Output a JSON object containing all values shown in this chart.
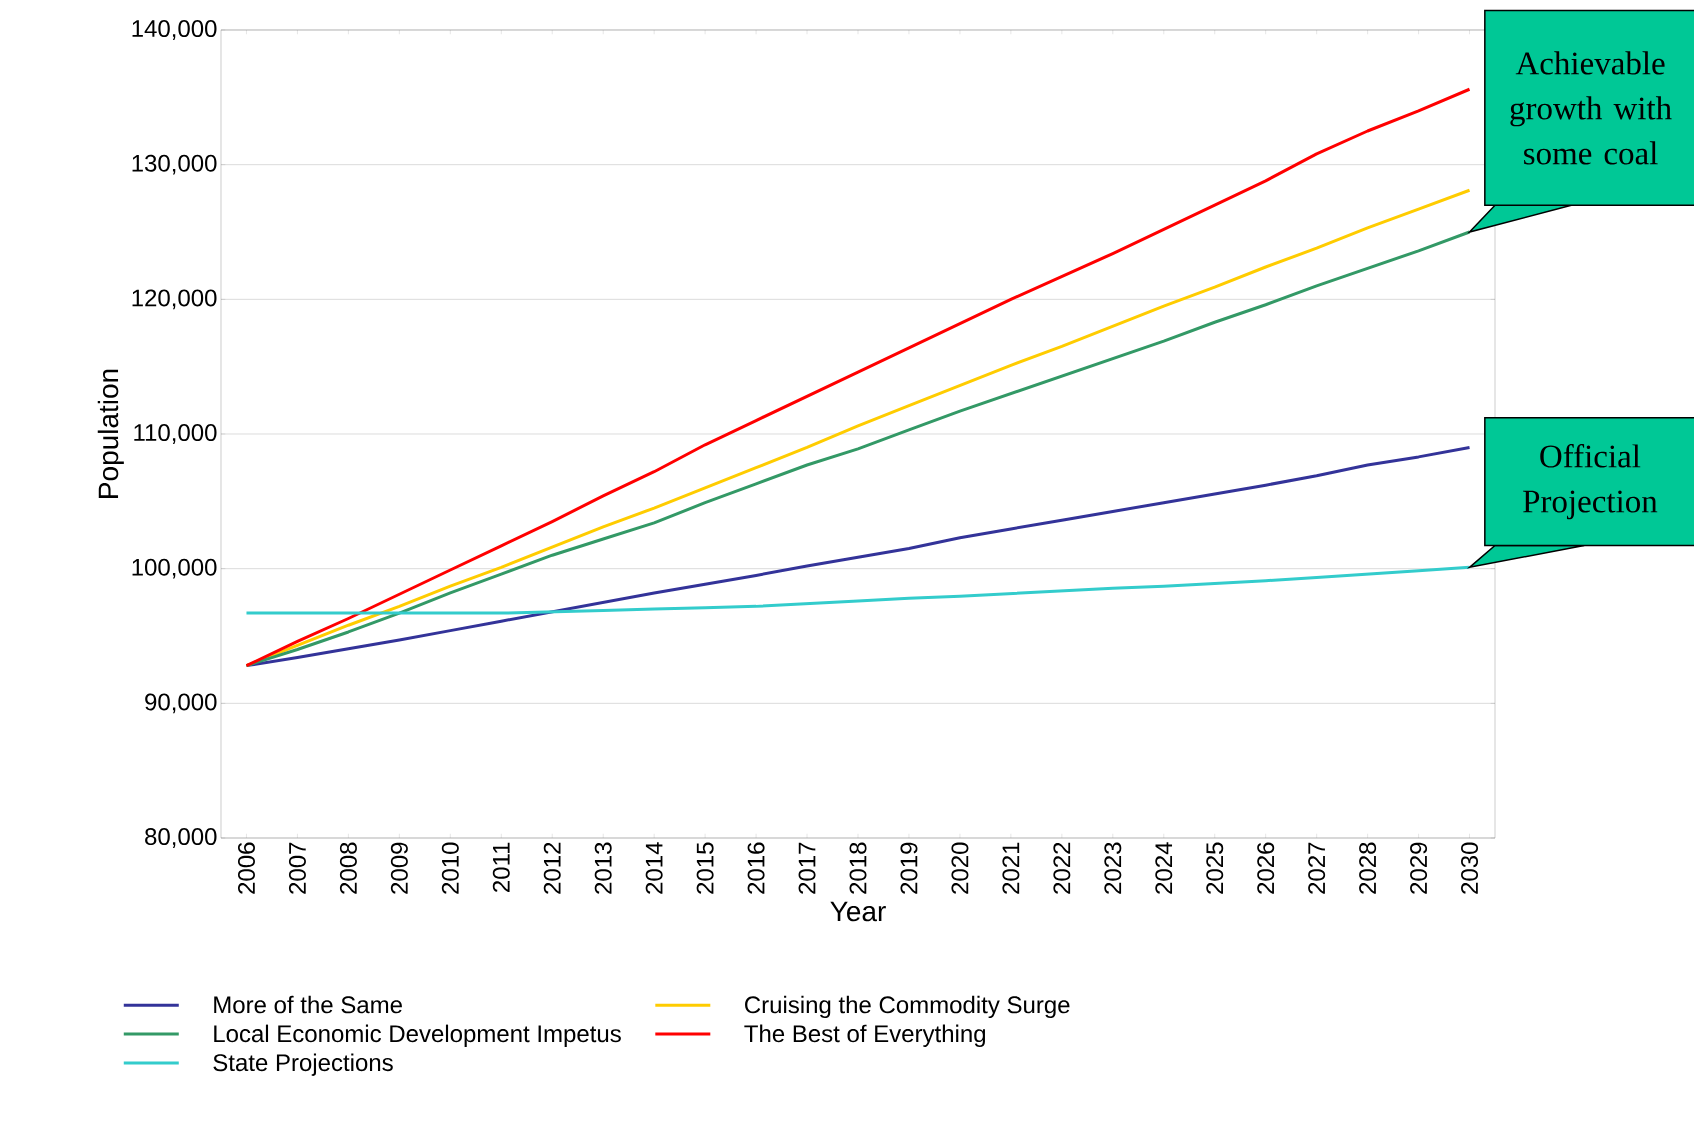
{
  "chart_data": {
    "type": "line",
    "xlabel": "Year",
    "ylabel": "Population",
    "categories": [
      "2006",
      "2007",
      "2008",
      "2009",
      "2010",
      "2011",
      "2012",
      "2013",
      "2014",
      "2015",
      "2016",
      "2017",
      "2018",
      "2019",
      "2020",
      "2021",
      "2022",
      "2023",
      "2024",
      "2025",
      "2026",
      "2027",
      "2028",
      "2029",
      "2030"
    ],
    "series": [
      {
        "name": "More of the Same",
        "color": "#333399",
        "values": [
          92800,
          93400,
          94050,
          94700,
          95400,
          96100,
          96800,
          97500,
          98200,
          98850,
          99500,
          100200,
          100850,
          101500,
          102300,
          102950,
          103600,
          104250,
          104900,
          105550,
          106200,
          106900,
          107700,
          108300,
          109000
        ]
      },
      {
        "name": "Cruising the Commodity Surge",
        "color": "#ffcc00",
        "values": [
          92800,
          94300,
          95800,
          97200,
          98700,
          100100,
          101600,
          103100,
          104500,
          106000,
          107500,
          109000,
          110600,
          112100,
          113600,
          115100,
          116500,
          118000,
          119500,
          120900,
          122400,
          123800,
          125300,
          126700,
          128100
        ]
      },
      {
        "name": "Local Economic Development Impetus",
        "color": "#339966",
        "values": [
          92800,
          94000,
          95300,
          96700,
          98200,
          99600,
          101000,
          102200,
          103400,
          104900,
          106300,
          107700,
          108900,
          110300,
          111700,
          113000,
          114300,
          115600,
          116900,
          118300,
          119600,
          121000,
          122300,
          123600,
          125000
        ]
      },
      {
        "name": "The Best of Everything",
        "color": "#ff0000",
        "values": [
          92800,
          94600,
          96300,
          98100,
          99900,
          101700,
          103500,
          105400,
          107200,
          109200,
          111000,
          112800,
          114600,
          116400,
          118200,
          120000,
          121700,
          123400,
          125200,
          127000,
          128800,
          130800,
          132500,
          134000,
          135600
        ]
      },
      {
        "name": "State Projections",
        "color": "#33cccc",
        "values": [
          96700,
          96700,
          96700,
          96700,
          96700,
          96700,
          96800,
          96900,
          97000,
          97100,
          97200,
          97400,
          97600,
          97800,
          97950,
          98150,
          98350,
          98550,
          98700,
          98900,
          99100,
          99350,
          99600,
          99850,
          100100
        ]
      }
    ],
    "ylim": [
      80000,
      140000
    ],
    "yticks": [
      {
        "value": 80000,
        "label": "80,000"
      },
      {
        "value": 90000,
        "label": "90,000"
      },
      {
        "value": 100000,
        "label": "100,000"
      },
      {
        "value": 110000,
        "label": "110,000"
      },
      {
        "value": 120000,
        "label": "120,000"
      },
      {
        "value": 130000,
        "label": "130,000"
      },
      {
        "value": 140000,
        "label": "140,000"
      }
    ],
    "grid": "y",
    "legend": "bottom",
    "marker": "none",
    "line_style": "solid",
    "annotations": [
      {
        "text": "Achievable growth with some coal",
        "x": "2030",
        "y": 125000
      },
      {
        "text": "Official Projection",
        "x": "2030",
        "y": 100100
      }
    ]
  }
}
